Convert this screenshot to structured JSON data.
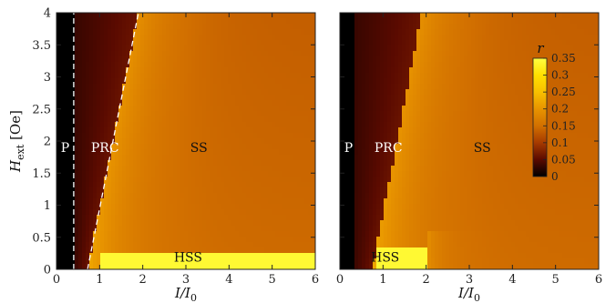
{
  "chart_data": [
    {
      "type": "heatmap",
      "xlim": [
        0,
        6
      ],
      "ylim": [
        0,
        4
      ],
      "x_ticks": [
        0,
        1,
        2,
        3,
        4,
        5,
        6
      ],
      "y_ticks": [
        0,
        0.5,
        1,
        1.5,
        2,
        2.5,
        3,
        3.5,
        4
      ],
      "x_tick_labels": [
        "0",
        "1",
        "2",
        "3",
        "4",
        "5",
        "6"
      ],
      "y_tick_labels": [
        "0",
        "0.5",
        "1",
        "1.5",
        "2",
        "2.5",
        "3",
        "3.5",
        "4"
      ],
      "xlabel_main": "I/I",
      "xlabel_sub": "0",
      "ylabel_main": "H",
      "ylabel_sub": "ext",
      "ylabel_unit": " [Oe]",
      "boundaries": [
        {
          "style": "dashed",
          "color": "#ffffff",
          "points": [
            [
              0.4,
              0
            ],
            [
              0.4,
              4
            ]
          ]
        },
        {
          "style": "dashed",
          "color": "#ffffff",
          "points": [
            [
              0.72,
              0
            ],
            [
              1.9,
              4
            ]
          ]
        }
      ],
      "regions": [
        {
          "label": "P",
          "x": 0.1,
          "y": 1.83,
          "color": "#ffffff"
        },
        {
          "label": "PRC",
          "x": 0.8,
          "y": 1.83,
          "color": "#ffffff"
        },
        {
          "label": "SS",
          "x": 3.3,
          "y": 1.83,
          "color": "#111111"
        },
        {
          "label": "HSS",
          "x": 3.05,
          "y": 0.12,
          "color": "#111111"
        }
      ],
      "model": {
        "p_edge": 0.4,
        "prc_x0": 0.72,
        "prc_x1": 1.9,
        "hss_h": 0.28,
        "hss_x_end": 6,
        "hss_ramp_x": 1.0
      }
    },
    {
      "type": "heatmap",
      "xlim": [
        0,
        6
      ],
      "ylim": [
        0,
        4
      ],
      "x_ticks": [
        0,
        1,
        2,
        3,
        4,
        5,
        6
      ],
      "y_ticks": [
        0,
        0.5,
        1,
        1.5,
        2,
        2.5,
        3,
        3.5,
        4
      ],
      "x_tick_labels": [
        "0",
        "1",
        "2",
        "3",
        "4",
        "5",
        "6"
      ],
      "xlabel_main": "I/I",
      "xlabel_sub": "0",
      "regions": [
        {
          "label": "P",
          "x": 0.1,
          "y": 1.83,
          "color": "#ffffff"
        },
        {
          "label": "PRC",
          "x": 0.8,
          "y": 1.83,
          "color": "#ffffff"
        },
        {
          "label": "SS",
          "x": 3.3,
          "y": 1.83,
          "color": "#111111"
        },
        {
          "label": "HSS",
          "x": 1.05,
          "y": 0.12,
          "color": "#111111"
        }
      ],
      "model": {
        "p_edge": 0.3,
        "prc_x0": 0.75,
        "prc_x1": 1.9,
        "hss_h": 0.3,
        "hss_x_end": 2.0,
        "hss_ramp_x": 0.85
      }
    }
  ],
  "colorbar": {
    "label": "r",
    "range": [
      0,
      0.35
    ],
    "ticks": [
      0,
      0.05,
      0.1,
      0.15,
      0.2,
      0.25,
      0.3,
      0.35
    ],
    "tick_labels": [
      "0",
      "0.05",
      "0.1",
      "0.15",
      "0.2",
      "0.25",
      "0.3",
      "0.35"
    ],
    "colors": [
      "#000000",
      "#5a0a00",
      "#a63a00",
      "#d27000",
      "#e89400",
      "#f8c000",
      "#ffe000",
      "#ffff40"
    ]
  }
}
